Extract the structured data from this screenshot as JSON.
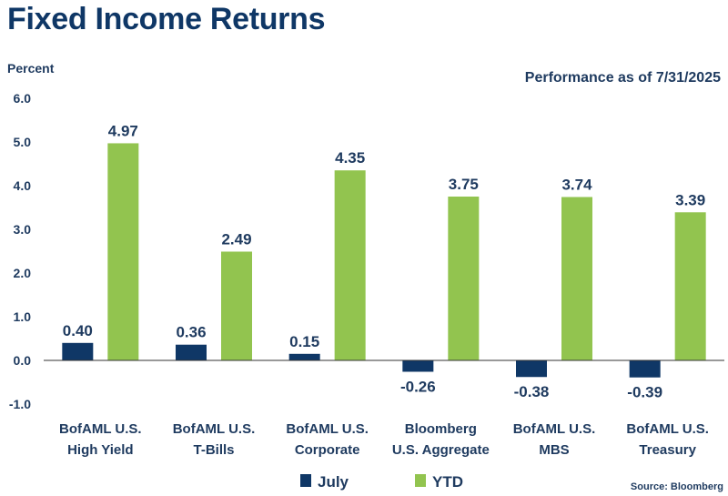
{
  "title": "Fixed Income Returns",
  "chart_data": {
    "type": "bar",
    "ylabel": "Percent",
    "subtitle": "Performance as of 7/31/2025",
    "source": "Source: Bloomberg",
    "ylim": [
      -1.0,
      6.0
    ],
    "yticks": [
      "6.0",
      "5.0",
      "4.0",
      "3.0",
      "2.0",
      "1.0",
      "0.0",
      "-1.0"
    ],
    "ytick_values": [
      6,
      5,
      4,
      3,
      2,
      1,
      0,
      -1
    ],
    "grid": false,
    "legend_position": "bottom",
    "categories": [
      [
        "BofAML U.S.",
        "High Yield"
      ],
      [
        "BofAML U.S.",
        "T-Bills"
      ],
      [
        "BofAML U.S.",
        "Corporate"
      ],
      [
        "Bloomberg",
        "U.S. Aggregate"
      ],
      [
        "BofAML U.S.",
        "MBS"
      ],
      [
        "BofAML U.S.",
        "Treasury"
      ]
    ],
    "series": [
      {
        "name": "July",
        "color": "#0f3766",
        "values": [
          0.4,
          0.36,
          0.15,
          -0.26,
          -0.38,
          -0.39
        ],
        "labels": [
          "0.40",
          "0.36",
          "0.15",
          "-0.26",
          "-0.38",
          "-0.39"
        ]
      },
      {
        "name": "YTD",
        "color": "#92c44f",
        "values": [
          4.97,
          2.49,
          4.35,
          3.75,
          3.74,
          3.39
        ],
        "labels": [
          "4.97",
          "2.49",
          "4.35",
          "3.75",
          "3.74",
          "3.39"
        ]
      }
    ]
  }
}
